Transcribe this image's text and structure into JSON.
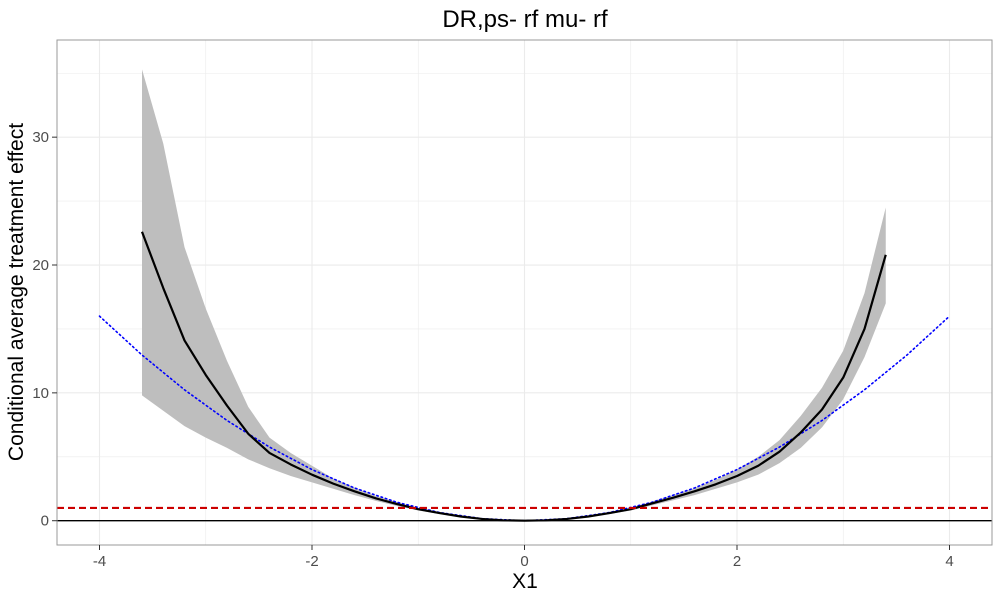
{
  "chart_data": {
    "type": "line",
    "title": "DR,ps- rf mu- rf",
    "xlabel": "X1",
    "ylabel": "Conditional average treatment effect",
    "xlim": [
      -4.4,
      4.4
    ],
    "ylim": [
      -1.9,
      37.6
    ],
    "x_ticks": [
      -4,
      -2,
      0,
      2,
      4
    ],
    "x_tick_labels": [
      "-4",
      "-2",
      "0",
      "2",
      "4"
    ],
    "y_ticks": [
      0,
      10,
      20,
      30
    ],
    "y_tick_labels": [
      "0",
      "10",
      "20",
      "30"
    ],
    "x_minor_ticks": [
      -3,
      -1,
      1,
      3
    ],
    "y_minor_ticks": [
      5,
      15,
      25,
      35
    ],
    "grid": true,
    "theme": "bw",
    "colors": {
      "estimate": "#000000",
      "band": "#bebebe",
      "truth": "#0000ff",
      "threshold": "#cc0000",
      "zero": "#000000",
      "grid": "#ebebeb",
      "panel_border": "#999999",
      "tick_label": "#4d4d4d"
    },
    "series": [
      {
        "role": "estimate",
        "line_style": "solid",
        "x": [
          -3.6,
          -3.4,
          -3.2,
          -3.0,
          -2.8,
          -2.6,
          -2.4,
          -2.2,
          -2.0,
          -1.8,
          -1.6,
          -1.4,
          -1.2,
          -1.0,
          -0.8,
          -0.6,
          -0.4,
          -0.2,
          0.0,
          0.2,
          0.4,
          0.6,
          0.8,
          1.0,
          1.2,
          1.4,
          1.6,
          1.8,
          2.0,
          2.2,
          2.4,
          2.6,
          2.8,
          3.0,
          3.2,
          3.4
        ],
        "y": [
          22.6,
          18.2,
          14.1,
          11.4,
          9.0,
          6.8,
          5.3,
          4.4,
          3.6,
          2.9,
          2.3,
          1.75,
          1.3,
          0.9,
          0.6,
          0.33,
          0.14,
          0.03,
          0.0,
          0.03,
          0.14,
          0.33,
          0.6,
          0.9,
          1.35,
          1.8,
          2.3,
          2.85,
          3.5,
          4.3,
          5.4,
          6.9,
          8.7,
          11.2,
          15.0,
          20.8
        ]
      },
      {
        "role": "confidence_band",
        "x": [
          -3.6,
          -3.4,
          -3.2,
          -3.0,
          -2.8,
          -2.6,
          -2.4,
          -2.2,
          -2.0,
          -1.8,
          -1.6,
          -1.4,
          -1.2,
          -1.0,
          -0.8,
          -0.6,
          -0.4,
          -0.2,
          0.0,
          0.2,
          0.4,
          0.6,
          0.8,
          1.0,
          1.2,
          1.4,
          1.6,
          1.8,
          2.0,
          2.2,
          2.4,
          2.6,
          2.8,
          3.0,
          3.2,
          3.4
        ],
        "lower": [
          9.8,
          8.6,
          7.4,
          6.5,
          5.7,
          4.8,
          4.1,
          3.5,
          3.0,
          2.5,
          2.0,
          1.55,
          1.15,
          0.8,
          0.52,
          0.28,
          0.11,
          0.02,
          -0.05,
          0.02,
          0.11,
          0.28,
          0.52,
          0.8,
          1.2,
          1.6,
          2.0,
          2.5,
          3.0,
          3.6,
          4.5,
          5.7,
          7.3,
          9.5,
          12.8,
          17.0
        ],
        "upper": [
          35.3,
          29.5,
          21.4,
          16.6,
          12.5,
          8.9,
          6.5,
          5.3,
          4.3,
          3.3,
          2.6,
          1.95,
          1.45,
          1.0,
          0.68,
          0.38,
          0.17,
          0.05,
          0.05,
          0.05,
          0.17,
          0.38,
          0.68,
          1.0,
          1.5,
          2.0,
          2.55,
          3.2,
          4.0,
          5.0,
          6.3,
          8.2,
          10.4,
          13.3,
          17.8,
          24.5
        ]
      },
      {
        "role": "truth",
        "line_style": "dotted",
        "x": [
          -4.0,
          -3.6,
          -3.2,
          -2.8,
          -2.4,
          -2.0,
          -1.6,
          -1.2,
          -0.8,
          -0.4,
          0.0,
          0.4,
          0.8,
          1.2,
          1.6,
          2.0,
          2.4,
          2.8,
          3.2,
          3.6,
          4.0
        ],
        "y": [
          16.0,
          12.96,
          10.24,
          7.84,
          5.76,
          4.0,
          2.56,
          1.44,
          0.64,
          0.16,
          0.0,
          0.16,
          0.64,
          1.44,
          2.56,
          4.0,
          5.76,
          7.84,
          10.24,
          12.96,
          16.0
        ]
      }
    ],
    "hlines": [
      {
        "y": 0,
        "style": "solid",
        "role": "zero"
      },
      {
        "y": 1,
        "style": "dashed",
        "role": "threshold"
      }
    ]
  }
}
